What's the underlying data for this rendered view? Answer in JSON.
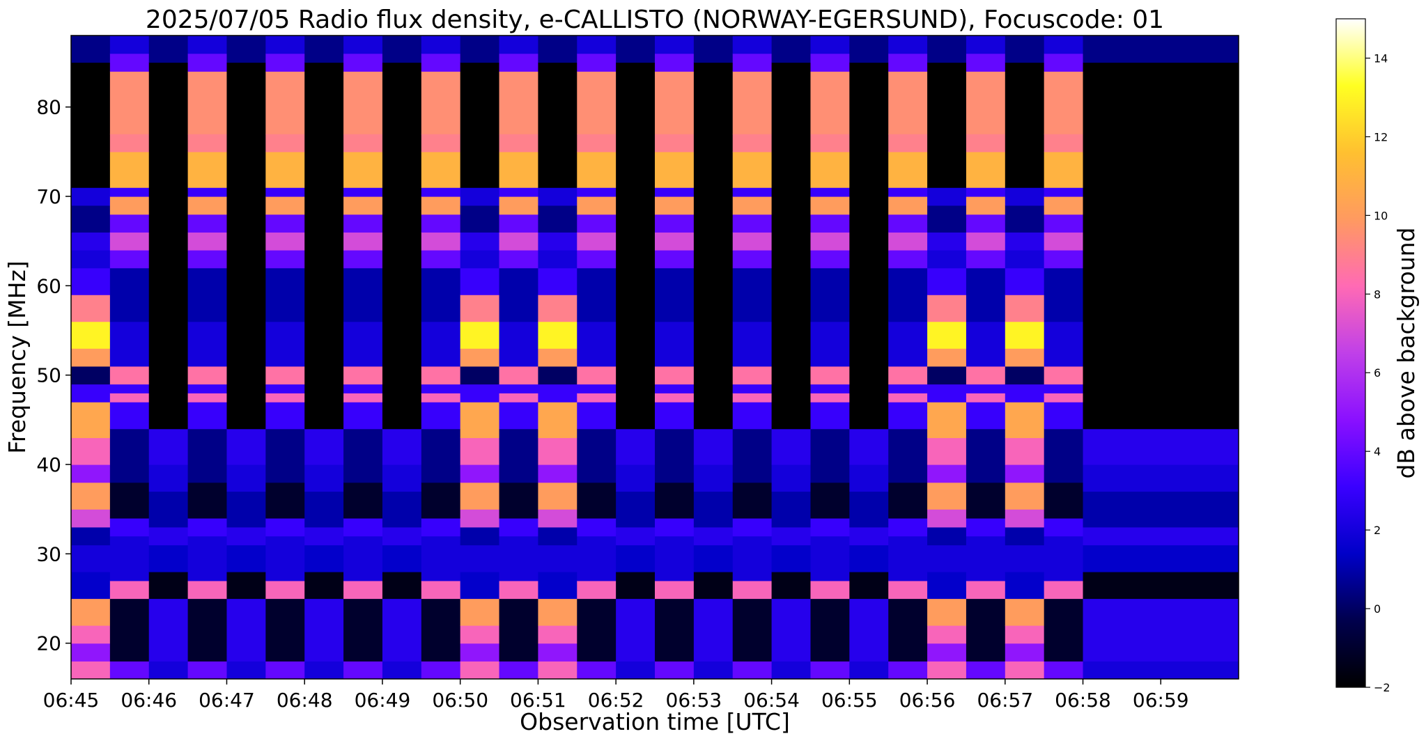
{
  "chart_data": [
    {
      "type": "heatmap",
      "title": "2025/07/05  Radio flux density, e-CALLISTO (NORWAY-EGERSUND), Focuscode: 01",
      "xlabel": "Observation time [UTC]",
      "ylabel": "Frequency [MHz]",
      "x_range": [
        "06:45",
        "07:00"
      ],
      "y_range": [
        16,
        88
      ],
      "x_ticks": [
        "06:45",
        "06:46",
        "06:47",
        "06:48",
        "06:49",
        "06:50",
        "06:51",
        "06:52",
        "06:53",
        "06:54",
        "06:55",
        "06:56",
        "06:57",
        "06:58",
        "06:59"
      ],
      "y_ticks": [
        20,
        30,
        40,
        50,
        60,
        70,
        80
      ],
      "color_scale": {
        "label": "dB above background",
        "range": [
          -2,
          15
        ],
        "ticks": [
          -2,
          0,
          2,
          4,
          6,
          8,
          10,
          12,
          14
        ],
        "colormap": "gnuplot2",
        "colors": [
          "#000000",
          "#00004d",
          "#0000c8",
          "#3a00ff",
          "#8a10ff",
          "#c040e8",
          "#ff6ab4",
          "#ff9a60",
          "#ffc030",
          "#ffff22",
          "#ffffff"
        ]
      },
      "time_segments": [
        {
          "start": "06:45:00",
          "end": "06:45:30",
          "mode": "A"
        },
        {
          "start": "06:45:30",
          "end": "06:46:00",
          "mode": "B"
        },
        {
          "start": "06:46:00",
          "end": "06:46:30",
          "mode": "C"
        },
        {
          "start": "06:46:30",
          "end": "06:47:00",
          "mode": "B"
        },
        {
          "start": "06:47:00",
          "end": "06:47:30",
          "mode": "C"
        },
        {
          "start": "06:47:30",
          "end": "06:48:00",
          "mode": "B"
        },
        {
          "start": "06:48:00",
          "end": "06:48:30",
          "mode": "C"
        },
        {
          "start": "06:48:30",
          "end": "06:49:00",
          "mode": "B"
        },
        {
          "start": "06:49:00",
          "end": "06:49:30",
          "mode": "C"
        },
        {
          "start": "06:49:30",
          "end": "06:50:00",
          "mode": "B"
        },
        {
          "start": "06:50:00",
          "end": "06:50:30",
          "mode": "A"
        },
        {
          "start": "06:50:30",
          "end": "06:51:00",
          "mode": "B"
        },
        {
          "start": "06:51:00",
          "end": "06:51:30",
          "mode": "A"
        },
        {
          "start": "06:51:30",
          "end": "06:52:00",
          "mode": "B"
        },
        {
          "start": "06:52:00",
          "end": "06:52:30",
          "mode": "C"
        },
        {
          "start": "06:52:30",
          "end": "06:53:00",
          "mode": "B"
        },
        {
          "start": "06:53:00",
          "end": "06:53:30",
          "mode": "C"
        },
        {
          "start": "06:53:30",
          "end": "06:54:00",
          "mode": "B"
        },
        {
          "start": "06:54:00",
          "end": "06:54:30",
          "mode": "C"
        },
        {
          "start": "06:54:30",
          "end": "06:55:00",
          "mode": "B"
        },
        {
          "start": "06:55:00",
          "end": "06:55:30",
          "mode": "C"
        },
        {
          "start": "06:55:30",
          "end": "06:56:00",
          "mode": "B"
        },
        {
          "start": "06:56:00",
          "end": "06:56:30",
          "mode": "A"
        },
        {
          "start": "06:56:30",
          "end": "06:57:00",
          "mode": "B"
        },
        {
          "start": "06:57:00",
          "end": "06:57:30",
          "mode": "A"
        },
        {
          "start": "06:57:30",
          "end": "06:58:00",
          "mode": "B"
        },
        {
          "start": "06:58:00",
          "end": "07:00:00",
          "mode": "C"
        }
      ],
      "mode_profiles": {
        "A": [
          {
            "f0": 16,
            "f1": 18,
            "db": 8
          },
          {
            "f0": 18,
            "f1": 20,
            "db": 5
          },
          {
            "f0": 20,
            "f1": 22,
            "db": 8
          },
          {
            "f0": 22,
            "f1": 25,
            "db": 10
          },
          {
            "f0": 25,
            "f1": 28,
            "db": 1.5
          },
          {
            "f0": 28,
            "f1": 31,
            "db": 2
          },
          {
            "f0": 31,
            "f1": 33,
            "db": 1
          },
          {
            "f0": 33,
            "f1": 35,
            "db": 7
          },
          {
            "f0": 35,
            "f1": 38,
            "db": 10
          },
          {
            "f0": 38,
            "f1": 40,
            "db": 5
          },
          {
            "f0": 40,
            "f1": 43,
            "db": 8
          },
          {
            "f0": 43,
            "f1": 47,
            "db": 10.5
          },
          {
            "f0": 47,
            "f1": 49,
            "db": 3
          },
          {
            "f0": 49,
            "f1": 51,
            "db": 0
          },
          {
            "f0": 51,
            "f1": 53,
            "db": 10
          },
          {
            "f0": 53,
            "f1": 56,
            "db": 13
          },
          {
            "f0": 56,
            "f1": 59,
            "db": 9
          },
          {
            "f0": 59,
            "f1": 62,
            "db": 3
          },
          {
            "f0": 62,
            "f1": 64,
            "db": 2
          },
          {
            "f0": 64,
            "f1": 66,
            "db": 2.5
          },
          {
            "f0": 66,
            "f1": 69,
            "db": 0.5
          },
          {
            "f0": 69,
            "f1": 71,
            "db": 2
          },
          {
            "f0": 71,
            "f1": 85,
            "db": -2
          },
          {
            "f0": 85,
            "f1": 88,
            "db": 0.5
          }
        ],
        "B": [
          {
            "f0": 16,
            "f1": 18,
            "db": 4
          },
          {
            "f0": 18,
            "f1": 25,
            "db": -1
          },
          {
            "f0": 25,
            "f1": 27,
            "db": 8
          },
          {
            "f0": 27,
            "f1": 32,
            "db": 2
          },
          {
            "f0": 32,
            "f1": 34,
            "db": 3
          },
          {
            "f0": 34,
            "f1": 38,
            "db": -1
          },
          {
            "f0": 38,
            "f1": 44,
            "db": 0.5
          },
          {
            "f0": 44,
            "f1": 47,
            "db": 3
          },
          {
            "f0": 47,
            "f1": 48,
            "db": 8
          },
          {
            "f0": 48,
            "f1": 49,
            "db": 3
          },
          {
            "f0": 49,
            "f1": 51,
            "db": 8.5
          },
          {
            "f0": 51,
            "f1": 56,
            "db": 2
          },
          {
            "f0": 56,
            "f1": 62,
            "db": 1
          },
          {
            "f0": 62,
            "f1": 64,
            "db": 4
          },
          {
            "f0": 64,
            "f1": 66,
            "db": 7
          },
          {
            "f0": 66,
            "f1": 68,
            "db": 4
          },
          {
            "f0": 68,
            "f1": 70,
            "db": 10
          },
          {
            "f0": 70,
            "f1": 71,
            "db": 3
          },
          {
            "f0": 71,
            "f1": 75,
            "db": 11
          },
          {
            "f0": 75,
            "f1": 77,
            "db": 9
          },
          {
            "f0": 77,
            "f1": 84,
            "db": 9.5
          },
          {
            "f0": 84,
            "f1": 86,
            "db": 4
          },
          {
            "f0": 86,
            "f1": 88,
            "db": 2
          }
        ],
        "C": [
          {
            "f0": 16,
            "f1": 18,
            "db": 2
          },
          {
            "f0": 18,
            "f1": 25,
            "db": 2.5
          },
          {
            "f0": 25,
            "f1": 28,
            "db": -1.5
          },
          {
            "f0": 28,
            "f1": 31,
            "db": 1.5
          },
          {
            "f0": 31,
            "f1": 33,
            "db": 2.5
          },
          {
            "f0": 33,
            "f1": 37,
            "db": 1
          },
          {
            "f0": 37,
            "f1": 40,
            "db": 2
          },
          {
            "f0": 40,
            "f1": 44,
            "db": 2.5
          },
          {
            "f0": 44,
            "f1": 85,
            "db": -2
          },
          {
            "f0": 85,
            "f1": 88,
            "db": 0.5
          }
        ]
      }
    }
  ]
}
